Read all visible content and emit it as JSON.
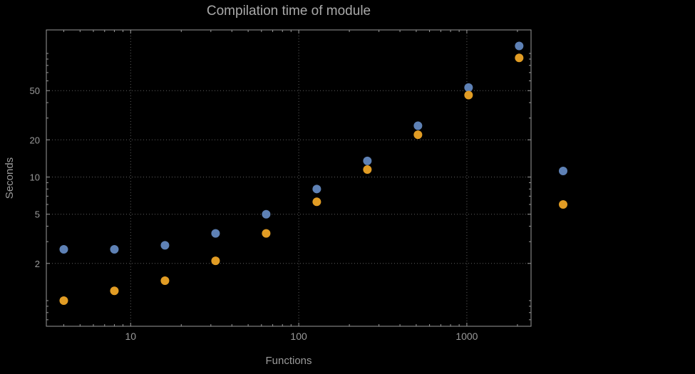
{
  "page": {
    "background": "#000000"
  },
  "chart_data": {
    "type": "scatter",
    "title": "Compilation time of module",
    "xlabel": "Functions",
    "ylabel": "Seconds",
    "xscale": "log",
    "yscale": "log",
    "xlim": [
      3.15,
      2410
    ],
    "ylim": [
      0.62,
      155
    ],
    "x_ticks": [
      10,
      100,
      1000
    ],
    "y_ticks": [
      2,
      5,
      10,
      20,
      50
    ],
    "grid": "dotted",
    "legend_position": "right-outside-middle",
    "legend_labels_visible": false,
    "colors": {
      "background": "#000000",
      "frame": "#9a9a9a",
      "grid": "#5f5f5f",
      "tick_label": "#9a9a9a",
      "axis_label": "#9a9a9a",
      "title": "#a9a9a9"
    },
    "series": [
      {
        "name": "series-1-blue",
        "color": "#5e81b5",
        "x": [
          4,
          8,
          16,
          32,
          64,
          128,
          256,
          512,
          1024,
          2048
        ],
        "y": [
          2.6,
          2.6,
          2.8,
          3.5,
          5.0,
          8.0,
          13.5,
          26,
          53,
          115
        ]
      },
      {
        "name": "series-2-orange",
        "color": "#e19c24",
        "x": [
          4,
          8,
          16,
          32,
          64,
          128,
          256,
          512,
          1024,
          2048
        ],
        "y": [
          1.0,
          1.2,
          1.45,
          2.1,
          3.5,
          6.3,
          11.5,
          22,
          46,
          92
        ]
      }
    ]
  }
}
